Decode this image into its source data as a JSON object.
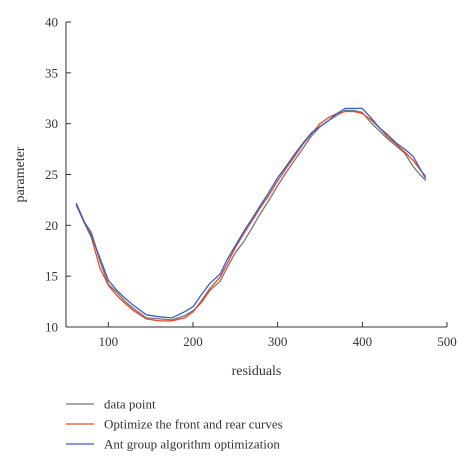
{
  "chart_data": {
    "type": "line",
    "xlabel": "residuals",
    "ylabel": "parameter",
    "xlim": [
      50,
      500
    ],
    "ylim": [
      10,
      40
    ],
    "x_ticks": [
      100,
      200,
      300,
      400,
      500
    ],
    "y_ticks": [
      10,
      15,
      20,
      25,
      30,
      35,
      40
    ],
    "grid": false,
    "legend_position": "bottom",
    "series": [
      {
        "name": "data point",
        "color": "#777777",
        "x": [
          62,
          72,
          80,
          90,
          100,
          110,
          120,
          130,
          145,
          160,
          175,
          190,
          200,
          210,
          220,
          232,
          240,
          250,
          260,
          270,
          280,
          290,
          300,
          310,
          320,
          330,
          340,
          350,
          360,
          370,
          380,
          390,
          400,
          410,
          420,
          430,
          440,
          450,
          460,
          468,
          475
        ],
        "y": [
          22.2,
          20.3,
          19.3,
          16.5,
          14.2,
          13.4,
          12.5,
          11.8,
          10.9,
          10.8,
          10.7,
          11.1,
          11.6,
          12.4,
          13.6,
          14.5,
          15.8,
          17.3,
          18.4,
          19.8,
          21.2,
          22.5,
          23.9,
          25.2,
          26.4,
          27.6,
          28.8,
          29.7,
          30.3,
          30.8,
          31.3,
          31.3,
          31.1,
          30.1,
          29.3,
          28.5,
          27.8,
          27.1,
          25.8,
          25.0,
          24.4
        ]
      },
      {
        "name": "Optimize the front and rear curves",
        "color": "#e8472a",
        "x": [
          62,
          72,
          80,
          90,
          100,
          110,
          120,
          130,
          145,
          160,
          175,
          190,
          200,
          210,
          220,
          232,
          240,
          250,
          260,
          270,
          280,
          290,
          300,
          310,
          320,
          330,
          340,
          350,
          360,
          370,
          380,
          390,
          400,
          410,
          420,
          430,
          440,
          450,
          460,
          468,
          475
        ],
        "y": [
          22.0,
          20.2,
          18.8,
          15.8,
          14.1,
          13.1,
          12.3,
          11.6,
          10.8,
          10.6,
          10.6,
          10.9,
          11.5,
          12.6,
          13.8,
          14.9,
          16.2,
          17.8,
          19.2,
          20.5,
          21.8,
          23.0,
          24.4,
          25.6,
          26.8,
          28.0,
          29.0,
          30.0,
          30.6,
          31.0,
          31.2,
          31.2,
          31.0,
          30.4,
          29.6,
          28.7,
          28.0,
          27.2,
          26.4,
          25.5,
          24.8
        ]
      },
      {
        "name": "Ant group algorithm optimization",
        "color": "#3b5fc0",
        "x": [
          62,
          72,
          80,
          90,
          100,
          110,
          120,
          130,
          145,
          160,
          175,
          190,
          200,
          210,
          220,
          232,
          240,
          250,
          260,
          270,
          280,
          290,
          300,
          310,
          320,
          330,
          340,
          350,
          360,
          370,
          380,
          390,
          400,
          410,
          420,
          430,
          440,
          450,
          460,
          468,
          475
        ],
        "y": [
          22.1,
          20.2,
          19.0,
          16.8,
          14.6,
          13.6,
          12.8,
          12.1,
          11.2,
          11.0,
          10.9,
          11.5,
          12.0,
          13.2,
          14.3,
          15.2,
          16.6,
          18.0,
          19.4,
          20.7,
          22.0,
          23.3,
          24.7,
          25.8,
          27.0,
          28.1,
          29.1,
          29.7,
          30.3,
          31.0,
          31.5,
          31.5,
          31.5,
          30.6,
          29.6,
          28.9,
          28.1,
          27.5,
          26.8,
          25.6,
          24.6
        ]
      }
    ]
  }
}
